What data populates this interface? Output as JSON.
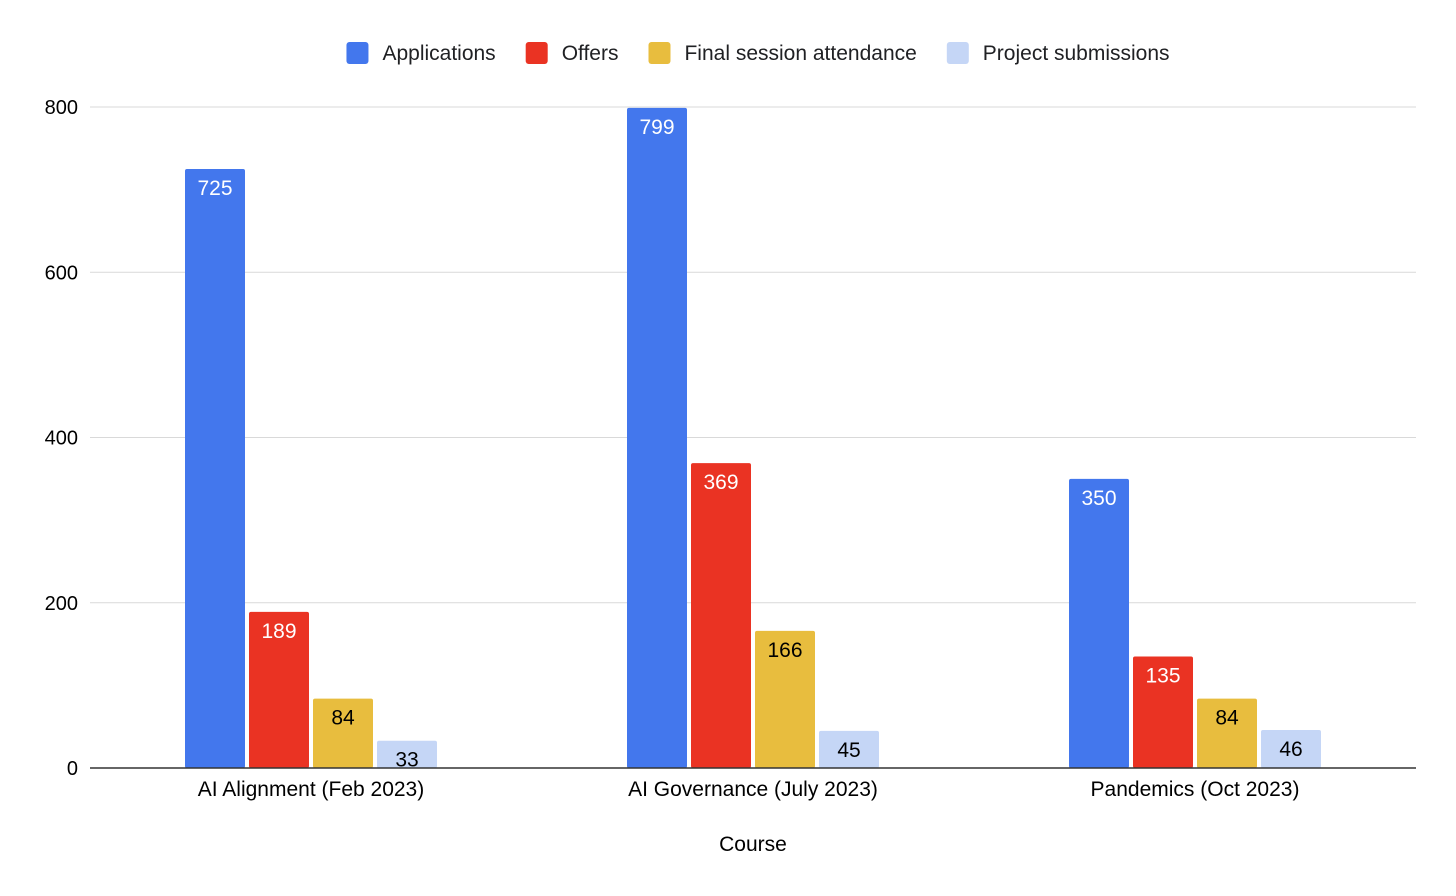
{
  "chart_data": {
    "type": "bar",
    "title": "",
    "xlabel": "Course",
    "ylabel": "",
    "ylim": [
      0,
      800
    ],
    "yticks": [
      0,
      200,
      400,
      600,
      800
    ],
    "grid": true,
    "legend_position": "top-center",
    "categories": [
      "AI Alignment (Feb 2023)",
      "AI Governance (July 2023)",
      "Pandemics (Oct 2023)"
    ],
    "series": [
      {
        "name": "Applications",
        "color": "#4377ED",
        "label_color": "#ffffff",
        "values": [
          725,
          799,
          350
        ]
      },
      {
        "name": "Offers",
        "color": "#EA3323",
        "label_color": "#ffffff",
        "values": [
          189,
          369,
          135
        ]
      },
      {
        "name": "Final session attendance",
        "color": "#E8BD3E",
        "label_color": "#000000",
        "values": [
          84,
          166,
          84
        ]
      },
      {
        "name": "Project submissions",
        "color": "#C5D6F6",
        "label_color": "#000000",
        "values": [
          33,
          45,
          46
        ]
      }
    ]
  }
}
